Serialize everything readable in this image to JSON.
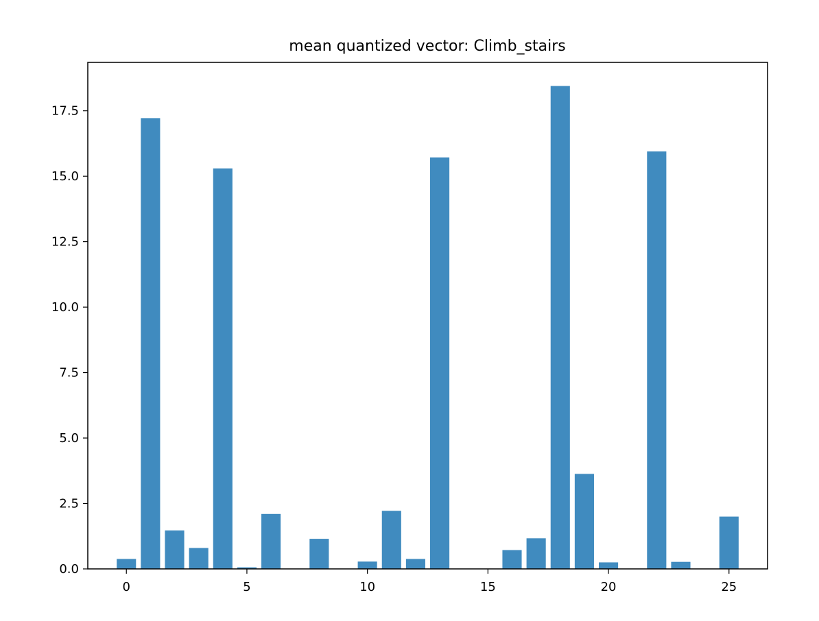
{
  "chart_data": {
    "type": "bar",
    "title": "mean quantized vector: Climb_stairs",
    "xlabel": "",
    "ylabel": "",
    "x": [
      0,
      1,
      2,
      3,
      4,
      5,
      6,
      7,
      8,
      9,
      10,
      11,
      12,
      13,
      14,
      15,
      16,
      17,
      18,
      19,
      20,
      21,
      22,
      23,
      24,
      25
    ],
    "values": [
      0.38,
      17.22,
      1.47,
      0.8,
      15.3,
      0.06,
      2.1,
      0,
      1.15,
      0,
      0.28,
      2.22,
      0.38,
      15.72,
      0,
      0,
      0.72,
      1.17,
      18.45,
      3.63,
      0.25,
      0,
      15.95,
      0.27,
      0,
      2.0
    ],
    "xlim": [
      -1.6,
      26.6
    ],
    "ylim": [
      0,
      19.35
    ],
    "xticks": [
      0,
      5,
      10,
      15,
      20,
      25
    ],
    "xtick_labels": [
      "0",
      "5",
      "10",
      "15",
      "20",
      "25"
    ],
    "yticks": [
      0,
      2.5,
      5,
      7.5,
      10,
      12.5,
      15,
      17.5
    ],
    "ytick_labels": [
      "0.0",
      "2.5",
      "5.0",
      "7.5",
      "10.0",
      "12.5",
      "15.0",
      "17.5"
    ],
    "bar_color": "#1f77b4",
    "bar_opacity": 0.85,
    "grid": false,
    "legend": "none"
  }
}
